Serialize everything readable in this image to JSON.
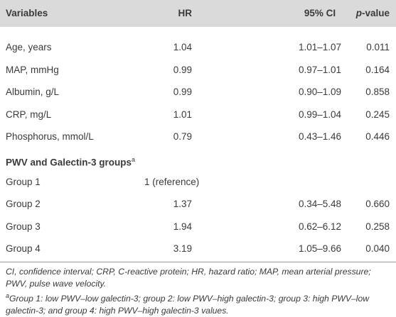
{
  "table": {
    "header": [
      "Variables",
      "HR",
      "95% CI",
      [
        "p",
        "-value"
      ]
    ],
    "rows": [
      [
        "Age, years",
        "1.04",
        "1.01–1.07",
        "0.011"
      ],
      [
        "MAP, mmHg",
        "0.99",
        "0.97–1.01",
        "0.164"
      ],
      [
        "Albumin, g/L",
        "0.99",
        "0.90–1.09",
        "0.858"
      ],
      [
        "CRP, mg/L",
        "1.01",
        "0.99–1.04",
        "0.245"
      ],
      [
        "Phosphorus, mmol/L",
        "0.79",
        "0.43–1.46",
        "0.446"
      ]
    ],
    "section": {
      "title": "PWV and Galectin-3 groups",
      "marker": "a"
    },
    "group_rows": [
      [
        "Group 1",
        "1 (reference)",
        null,
        null
      ],
      [
        "Group 2",
        "1.37",
        "0.34–5.48",
        "0.660"
      ],
      [
        "Group 3",
        "1.94",
        "0.62–6.12",
        "0.258"
      ],
      [
        "Group 4",
        "3.19",
        "1.05–9.66",
        "0.040"
      ]
    ]
  },
  "footnotes": {
    "abbreviations": "CI, confidence interval; CRP, C-reactive protein; HR, hazard ratio; MAP, mean arterial pressure; PWV, pulse wave velocity.",
    "a": {
      "marker": "a",
      "text": "Group 1: low PWV–low galectin-3; group 2: low PWV–high galectin-3; group 3: high PWV–low galectin-3; and group 4: high PWV–high galectin-3 values."
    }
  }
}
